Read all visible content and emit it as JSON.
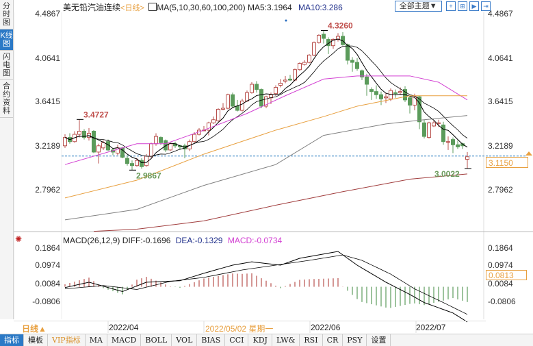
{
  "left_tabs": [
    {
      "label": "分时图"
    },
    {
      "label": "K线图",
      "selected": true
    },
    {
      "label": "闪电图"
    },
    {
      "label": "合约资料"
    }
  ],
  "header": {
    "symbol": "美无铅汽油连续",
    "period": "<日线>",
    "ma_params": "MA(5,10,30,60,100,200)",
    "ma5": "MA5:3.1964",
    "ma10": "MA10:3.286",
    "theme_button": "全部主题▼"
  },
  "macd_header": {
    "params": "MACD(26,12,9)",
    "diff": "DIFF:-0.1696",
    "dea": "DEA:-0.1329",
    "macd": "MACD:-0.0734"
  },
  "price_axis": [
    "4.4867",
    "4.0641",
    "3.6415",
    "3.2189",
    "2.7962"
  ],
  "macd_axis": [
    "0.1864",
    "0.0974",
    "0.0084",
    "-0.0806"
  ],
  "current_price": "3.1150",
  "macd_current": "0.0813",
  "date_axis": {
    "period_button": "日线▲",
    "labels": [
      "2022/04",
      "2022/05/02 星期一",
      "2022/06",
      "2022/07"
    ]
  },
  "bottom_tabs": [
    "指标",
    "模板",
    "VIP指标",
    "MA",
    "MACD",
    "BOLL",
    "VOL",
    "BIAS",
    "CCI",
    "KDJ",
    "LW&",
    "RSI",
    "CR",
    "PSY",
    "设置"
  ],
  "colors": {
    "up": "#b8504c",
    "down": "#5b9b5b",
    "ma5": "#000000",
    "ma10": "#000000",
    "ma30": "#d23fd2",
    "ma60": "#e8a040",
    "ma100": "#808080",
    "ma200": "#a03c3c",
    "last_line": "#2a7fc0",
    "accent": "#2b79c6"
  },
  "chart_data": {
    "type": "candlestick",
    "ylim": [
      2.6,
      4.4867
    ],
    "annotations": [
      {
        "label": "3.4727",
        "bar": 3,
        "kind": "high"
      },
      {
        "label": "2.9867",
        "bar": 14,
        "kind": "low"
      },
      {
        "label": "4.3260",
        "bar": 54,
        "kind": "high"
      },
      {
        "label": "3.0022",
        "bar": 84,
        "kind": "low"
      }
    ],
    "candles": [
      [
        3.22,
        3.33,
        3.2,
        3.3
      ],
      [
        3.3,
        3.34,
        3.24,
        3.26
      ],
      [
        3.26,
        3.36,
        3.25,
        3.33
      ],
      [
        3.33,
        3.4727,
        3.3,
        3.36
      ],
      [
        3.36,
        3.38,
        3.28,
        3.3
      ],
      [
        3.3,
        3.39,
        3.27,
        3.34
      ],
      [
        3.36,
        3.37,
        3.15,
        3.16
      ],
      [
        3.16,
        3.24,
        3.05,
        3.22
      ],
      [
        3.2,
        3.27,
        3.18,
        3.25
      ],
      [
        3.26,
        3.28,
        3.17,
        3.18
      ],
      [
        3.18,
        3.2,
        3.13,
        3.16
      ],
      [
        3.15,
        3.23,
        3.13,
        3.2
      ],
      [
        3.2,
        3.21,
        3.1,
        3.11
      ],
      [
        3.1,
        3.13,
        3.03,
        3.05
      ],
      [
        3.05,
        3.08,
        2.9867,
        3.03
      ],
      [
        3.03,
        3.1,
        3.02,
        3.08
      ],
      [
        3.08,
        3.1,
        3.0,
        3.02
      ],
      [
        3.03,
        3.14,
        3.02,
        3.12
      ],
      [
        3.12,
        3.25,
        3.1,
        3.24
      ],
      [
        3.24,
        3.34,
        3.22,
        3.31
      ],
      [
        3.3,
        3.31,
        3.23,
        3.25
      ],
      [
        3.27,
        3.28,
        3.16,
        3.18
      ],
      [
        3.18,
        3.25,
        3.17,
        3.24
      ],
      [
        3.24,
        3.26,
        3.2,
        3.22
      ],
      [
        3.22,
        3.23,
        3.18,
        3.21
      ],
      [
        3.22,
        3.24,
        3.1,
        3.19
      ],
      [
        3.19,
        3.28,
        3.17,
        3.26
      ],
      [
        3.26,
        3.35,
        3.25,
        3.33
      ],
      [
        3.33,
        3.39,
        3.32,
        3.37
      ],
      [
        3.37,
        3.41,
        3.36,
        3.37
      ],
      [
        3.37,
        3.45,
        3.32,
        3.44
      ],
      [
        3.44,
        3.5,
        3.43,
        3.47
      ],
      [
        3.46,
        3.58,
        3.45,
        3.57
      ],
      [
        3.57,
        3.63,
        3.56,
        3.58
      ],
      [
        3.58,
        3.72,
        3.57,
        3.71
      ],
      [
        3.71,
        3.73,
        3.58,
        3.6
      ],
      [
        3.6,
        3.66,
        3.55,
        3.56
      ],
      [
        3.56,
        3.67,
        3.55,
        3.65
      ],
      [
        3.65,
        3.75,
        3.64,
        3.73
      ],
      [
        3.73,
        3.83,
        3.72,
        3.81
      ],
      [
        3.81,
        3.84,
        3.73,
        3.76
      ],
      [
        3.76,
        3.77,
        3.58,
        3.6
      ],
      [
        3.6,
        3.7,
        3.58,
        3.69
      ],
      [
        3.68,
        3.73,
        3.62,
        3.71
      ],
      [
        3.72,
        3.8,
        3.7,
        3.78
      ],
      [
        3.8,
        3.86,
        3.78,
        3.82
      ],
      [
        3.84,
        3.89,
        3.82,
        3.85
      ],
      [
        3.86,
        3.9,
        3.84,
        3.85
      ],
      [
        3.85,
        3.96,
        3.84,
        3.95
      ],
      [
        3.95,
        4.02,
        3.94,
        4.01
      ],
      [
        4.0,
        4.04,
        3.99,
        4.02
      ],
      [
        4.02,
        4.1,
        4.01,
        4.09
      ],
      [
        4.09,
        4.22,
        4.08,
        4.21
      ],
      [
        4.21,
        4.29,
        4.2,
        4.28
      ],
      [
        4.29,
        4.326,
        4.2,
        4.25
      ],
      [
        4.24,
        4.26,
        4.1,
        4.18
      ],
      [
        4.18,
        4.25,
        4.15,
        4.24
      ],
      [
        4.24,
        4.3,
        4.22,
        4.27
      ],
      [
        4.27,
        4.31,
        4.18,
        4.19
      ],
      [
        4.19,
        4.2,
        4.0,
        4.04
      ],
      [
        4.04,
        4.07,
        3.93,
        4.02
      ],
      [
        4.02,
        4.06,
        3.94,
        3.96
      ],
      [
        3.94,
        3.95,
        3.85,
        3.88
      ],
      [
        3.88,
        3.91,
        3.7,
        3.81
      ],
      [
        3.76,
        3.78,
        3.66,
        3.74
      ],
      [
        3.74,
        3.8,
        3.67,
        3.71
      ],
      [
        3.71,
        3.74,
        3.61,
        3.67
      ],
      [
        3.68,
        3.73,
        3.63,
        3.69
      ],
      [
        3.67,
        3.77,
        3.65,
        3.75
      ],
      [
        3.73,
        3.76,
        3.68,
        3.72
      ],
      [
        3.73,
        3.78,
        3.71,
        3.74
      ],
      [
        3.76,
        3.79,
        3.64,
        3.66
      ],
      [
        3.68,
        3.7,
        3.53,
        3.61
      ],
      [
        3.61,
        3.72,
        3.56,
        3.69
      ],
      [
        3.69,
        3.7,
        3.38,
        3.45
      ],
      [
        3.44,
        3.47,
        3.29,
        3.31
      ],
      [
        3.3,
        3.45,
        3.29,
        3.44
      ],
      [
        3.41,
        3.46,
        3.4,
        3.44
      ],
      [
        3.44,
        3.47,
        3.4,
        3.44
      ],
      [
        3.42,
        3.45,
        3.23,
        3.26
      ],
      [
        3.26,
        3.31,
        3.18,
        3.26
      ],
      [
        3.28,
        3.3,
        3.15,
        3.23
      ],
      [
        3.23,
        3.27,
        3.19,
        3.21
      ],
      [
        3.24,
        3.25,
        3.19,
        3.22
      ],
      [
        3.09,
        3.16,
        3.0022,
        3.115
      ]
    ],
    "long_ma": {
      "ma30": [
        [
          0,
          3.04
        ],
        [
          15,
          3.24
        ],
        [
          21,
          3.24
        ],
        [
          29,
          3.37
        ],
        [
          38,
          3.53
        ],
        [
          46,
          3.7
        ],
        [
          54,
          3.86
        ],
        [
          61,
          3.89
        ],
        [
          72,
          3.89
        ],
        [
          78,
          3.83
        ],
        [
          84,
          3.66
        ]
      ],
      "ma60": [
        [
          0,
          2.72
        ],
        [
          15,
          2.89
        ],
        [
          29,
          3.14
        ],
        [
          44,
          3.37
        ],
        [
          54,
          3.5
        ],
        [
          61,
          3.6
        ],
        [
          72,
          3.7
        ],
        [
          84,
          3.7
        ]
      ],
      "ma100": [
        [
          0,
          2.51
        ],
        [
          15,
          2.61
        ],
        [
          29,
          2.84
        ],
        [
          44,
          3.04
        ],
        [
          54,
          3.32
        ],
        [
          67,
          3.43
        ],
        [
          75,
          3.47
        ],
        [
          84,
          3.51
        ]
      ],
      "ma200": [
        [
          6,
          2.4
        ],
        [
          15,
          2.42
        ],
        [
          29,
          2.5
        ],
        [
          44,
          2.65
        ],
        [
          58,
          2.78
        ],
        [
          72,
          2.9
        ],
        [
          84,
          2.95
        ]
      ]
    },
    "macd": {
      "ylim": [
        -0.19,
        0.2
      ],
      "diff": [
        [
          0,
          -0.004
        ],
        [
          5,
          0.022
        ],
        [
          12,
          -0.023
        ],
        [
          17,
          0.022
        ],
        [
          24,
          0.029
        ],
        [
          29,
          0.065
        ],
        [
          35,
          0.104
        ],
        [
          39,
          0.12
        ],
        [
          45,
          0.104
        ],
        [
          49,
          0.137
        ],
        [
          57,
          0.17
        ],
        [
          61,
          0.104
        ],
        [
          67,
          0.022
        ],
        [
          72,
          -0.037
        ],
        [
          75,
          -0.076
        ],
        [
          81,
          -0.126
        ],
        [
          84,
          -0.1696
        ]
      ],
      "dea": [
        [
          0,
          -0.01
        ],
        [
          8,
          0.006
        ],
        [
          15,
          -0.013
        ],
        [
          22,
          0.026
        ],
        [
          29,
          0.045
        ],
        [
          37,
          0.081
        ],
        [
          44,
          0.104
        ],
        [
          51,
          0.127
        ],
        [
          58,
          0.153
        ],
        [
          62,
          0.127
        ],
        [
          68,
          0.061
        ],
        [
          73,
          -0.01
        ],
        [
          79,
          -0.076
        ],
        [
          84,
          -0.1329
        ]
      ]
    }
  }
}
